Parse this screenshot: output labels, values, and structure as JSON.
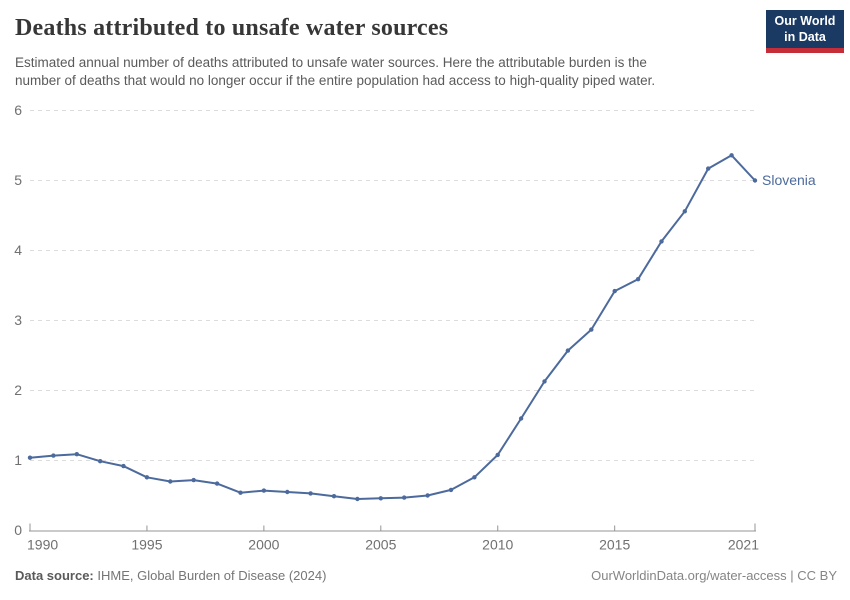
{
  "header": {
    "title": "Deaths attributed to unsafe water sources",
    "subtitle_lines": [
      "Estimated annual number of deaths attributed to unsafe water sources. Here the attributable burden is the",
      "number of deaths that would no longer occur if the entire population had access to high-quality piped water."
    ],
    "logo": {
      "line1": "Our World",
      "line2": "in Data"
    }
  },
  "chart_data": {
    "type": "line",
    "title": "Deaths attributed to unsafe water sources",
    "xlabel": "",
    "ylabel": "",
    "xlim": [
      1990,
      2021
    ],
    "ylim": [
      0,
      6
    ],
    "xticks": [
      1990,
      1995,
      2000,
      2005,
      2010,
      2015,
      2021
    ],
    "yticks": [
      0,
      1,
      2,
      3,
      4,
      5,
      6
    ],
    "grid": "horizontal-dashed",
    "legend_position": "end-of-line-label",
    "x": [
      1990,
      1991,
      1992,
      1993,
      1994,
      1995,
      1996,
      1997,
      1998,
      1999,
      2000,
      2001,
      2002,
      2003,
      2004,
      2005,
      2006,
      2007,
      2008,
      2009,
      2010,
      2011,
      2012,
      2013,
      2014,
      2015,
      2016,
      2017,
      2018,
      2019,
      2020,
      2021
    ],
    "series": [
      {
        "name": "Slovenia",
        "values": [
          1.04,
          1.07,
          1.09,
          0.99,
          0.92,
          0.76,
          0.7,
          0.72,
          0.67,
          0.54,
          0.57,
          0.55,
          0.53,
          0.49,
          0.45,
          0.46,
          0.47,
          0.5,
          0.58,
          0.76,
          1.08,
          1.6,
          2.13,
          2.57,
          2.87,
          3.42,
          3.59,
          4.13,
          4.56,
          5.17,
          5.36,
          5.0
        ]
      }
    ],
    "entity_label": "Slovenia"
  },
  "colors": {
    "line": "#4C6A9C",
    "entity_label": "#4C6A9C",
    "grid": "#dcdcdc",
    "axis": "#949494",
    "tick_label": "#707070",
    "logo_navy": "#1a3a63",
    "logo_red": "#c52d39"
  },
  "footer": {
    "datasource_label": "Data source:",
    "datasource_text": " IHME, Global Burden of Disease (2024)",
    "license_text": "OurWorldinData.org/water-access | CC BY"
  }
}
